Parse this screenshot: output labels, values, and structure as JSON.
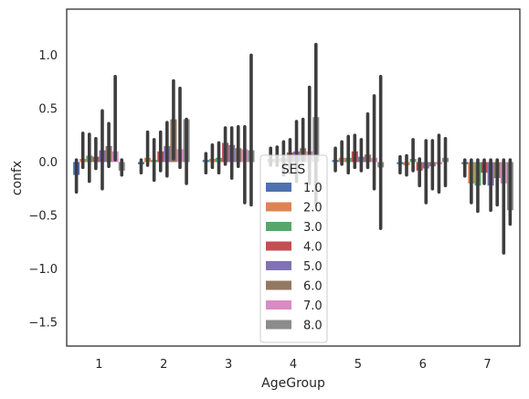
{
  "chart_data": {
    "type": "bar",
    "xlabel": "AgeGroup",
    "ylabel": "confx",
    "categories": [
      "1",
      "2",
      "3",
      "4",
      "5",
      "6",
      "7"
    ],
    "ylim": [
      -1.72,
      1.43
    ],
    "yticks": [
      -1.5,
      -1.0,
      -0.5,
      0.0,
      0.5,
      1.0
    ],
    "ytick_labels": [
      "−1.5",
      "−1.0",
      "−0.5",
      "0.0",
      "0.5",
      "1.0"
    ],
    "grid": false,
    "legend": {
      "title": "SES",
      "placement": "center-bottom"
    },
    "series": [
      {
        "name": "1.0",
        "color": "#4c72b0",
        "values": [
          -0.12,
          -0.02,
          0.02,
          0.03,
          0.02,
          -0.02,
          -0.02
        ],
        "ci": [
          [
            -0.28,
            0.02
          ],
          [
            -0.1,
            0.02
          ],
          [
            -0.1,
            0.08
          ],
          [
            -0.03,
            0.13
          ],
          [
            -0.08,
            0.13
          ],
          [
            -0.1,
            0.05
          ],
          [
            -0.13,
            0.02
          ]
        ]
      },
      {
        "name": "2.0",
        "color": "#dd8452",
        "values": [
          0.03,
          0.04,
          0.03,
          0.03,
          0.04,
          -0.03,
          -0.2
        ],
        "ci": [
          [
            -0.05,
            0.27
          ],
          [
            -0.03,
            0.28
          ],
          [
            -0.05,
            0.16
          ],
          [
            -0.03,
            0.14
          ],
          [
            -0.02,
            0.19
          ],
          [
            -0.12,
            0.06
          ],
          [
            -0.38,
            0.02
          ]
        ]
      },
      {
        "name": "3.0",
        "color": "#55a868",
        "values": [
          0.06,
          0.02,
          0.04,
          0.04,
          0.04,
          0.03,
          -0.22
        ],
        "ci": [
          [
            -0.18,
            0.26
          ],
          [
            -0.17,
            0.21
          ],
          [
            -0.1,
            0.18
          ],
          [
            -0.12,
            0.19
          ],
          [
            -0.1,
            0.24
          ],
          [
            -0.08,
            0.21
          ],
          [
            -0.46,
            0.02
          ]
        ]
      },
      {
        "name": "4.0",
        "color": "#c44e52",
        "values": [
          0.05,
          0.1,
          0.18,
          0.09,
          0.1,
          -0.08,
          -0.1
        ],
        "ci": [
          [
            -0.06,
            0.22
          ],
          [
            -0.08,
            0.28
          ],
          [
            -0.02,
            0.32
          ],
          [
            -0.1,
            0.21
          ],
          [
            -0.05,
            0.25
          ],
          [
            -0.22,
            0.03
          ],
          [
            -0.2,
            0.02
          ]
        ]
      },
      {
        "name": "5.0",
        "color": "#8172b3",
        "values": [
          0.11,
          0.15,
          0.16,
          0.1,
          0.05,
          -0.06,
          -0.22
        ],
        "ci": [
          [
            -0.25,
            0.48
          ],
          [
            -0.13,
            0.37
          ],
          [
            -0.15,
            0.32
          ],
          [
            -0.18,
            0.38
          ],
          [
            -0.08,
            0.21
          ],
          [
            -0.38,
            0.2
          ],
          [
            -0.45,
            0.02
          ]
        ]
      },
      {
        "name": "6.0",
        "color": "#937860",
        "values": [
          0.15,
          0.4,
          0.13,
          0.13,
          0.07,
          -0.04,
          -0.15
        ],
        "ci": [
          [
            -0.04,
            0.36
          ],
          [
            0.03,
            0.76
          ],
          [
            -0.04,
            0.33
          ],
          [
            0.02,
            0.4
          ],
          [
            -0.05,
            0.45
          ],
          [
            -0.25,
            0.2
          ],
          [
            -0.4,
            0.02
          ]
        ]
      },
      {
        "name": "7.0",
        "color": "#da8bc3",
        "values": [
          0.1,
          0.12,
          0.12,
          0.1,
          0.04,
          -0.02,
          -0.2
        ],
        "ci": [
          [
            0.02,
            0.8
          ],
          [
            -0.05,
            0.69
          ],
          [
            -0.38,
            0.33
          ],
          [
            -0.2,
            0.7
          ],
          [
            -0.25,
            0.62
          ],
          [
            -0.28,
            0.25
          ],
          [
            -0.85,
            0.02
          ]
        ]
      },
      {
        "name": "8.0",
        "color": "#8c8c8c",
        "values": [
          -0.08,
          0.4,
          0.11,
          0.42,
          -0.05,
          0.04,
          -0.45
        ],
        "ci": [
          [
            -0.12,
            0.02
          ],
          [
            -0.2,
            0.4
          ],
          [
            -0.4,
            1.0
          ],
          [
            -0.4,
            1.1
          ],
          [
            -0.62,
            0.8
          ],
          [
            -0.22,
            0.22
          ],
          [
            -0.58,
            0.02
          ]
        ]
      }
    ]
  }
}
